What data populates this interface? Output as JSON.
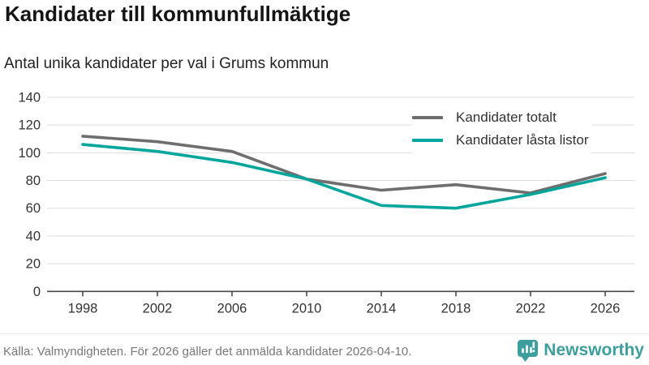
{
  "title": "Kandidater till kommunfullmäktige",
  "subtitle": "Antal unika kandidater per val i Grums kommun",
  "footer": {
    "source": "Källa: Valmyndigheten. För 2026 gäller det anmälda kandidater 2026-04-10."
  },
  "branding": {
    "name": "Newsworthy",
    "color": "#3E9E9E",
    "icon": "newsworthy-pin-bar-chart-icon"
  },
  "chart_data": {
    "type": "line",
    "title": "Kandidater till kommunfullmäktige",
    "subtitle": "Antal unika kandidater per val i Grums kommun",
    "x": [
      1998,
      2002,
      2006,
      2010,
      2014,
      2018,
      2022,
      2026
    ],
    "series": [
      {
        "name": "Kandidater totalt",
        "color": "#6e6e6e",
        "values": [
          112,
          108,
          101,
          81,
          73,
          77,
          71,
          85
        ]
      },
      {
        "name": "Kandidater låsta listor",
        "color": "#00a69c",
        "values": [
          106,
          101,
          93,
          81,
          62,
          60,
          70,
          82
        ]
      }
    ],
    "xlabel": "",
    "ylabel": "",
    "ylim": [
      0,
      140
    ],
    "ytick_step": 20,
    "grid": "horizontal",
    "gridline_color": "#dedede",
    "axis_color": "#4a4a4a",
    "tick_label_color": "#333333",
    "legend_position": "top-right"
  }
}
